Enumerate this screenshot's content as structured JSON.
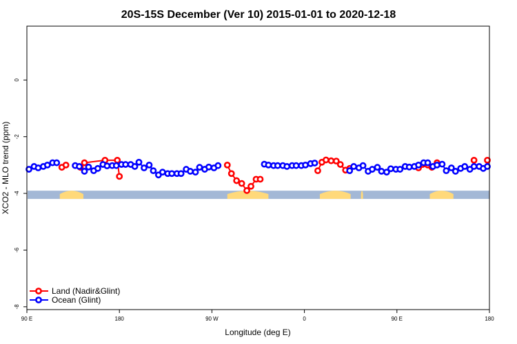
{
  "chart_data": {
    "type": "line",
    "title": "20S-15S December (Ver 10)   2015-01-01 to 2020-12-18",
    "xlabel": "Longitude (deg E)",
    "ylabel": "XCO2 - MLO trend (ppm)",
    "xlim": [
      90,
      540
    ],
    "ylim": [
      -8.1,
      1.9
    ],
    "x_ticks": [
      {
        "value": 90,
        "label": "90 E"
      },
      {
        "value": 180,
        "label": "180"
      },
      {
        "value": 270,
        "label": "90 W"
      },
      {
        "value": 360,
        "label": "0"
      },
      {
        "value": 450,
        "label": "90 E"
      },
      {
        "value": 540,
        "label": "180"
      }
    ],
    "y_ticks": [
      {
        "value": 0,
        "label": "0"
      },
      {
        "value": -2,
        "label": "-2"
      },
      {
        "value": -4,
        "label": "-4"
      },
      {
        "value": -6,
        "label": "-6"
      },
      {
        "value": -8,
        "label": "-8"
      }
    ],
    "series": [
      {
        "name": "Land (Nadir&Glint)",
        "color": "#ff0000",
        "segments": [
          [
            [
              124,
              -3.08
            ],
            [
              128,
              -3.0
            ]
          ],
          [
            [
              142,
              -3.08
            ],
            [
              146,
              -2.92
            ],
            [
              166,
              -2.83
            ],
            [
              178,
              -2.83
            ],
            [
              180,
              -3.4
            ]
          ],
          [
            [
              285,
              -3.0
            ],
            [
              289,
              -3.3
            ],
            [
              294,
              -3.55
            ],
            [
              299,
              -3.65
            ],
            [
              304,
              -3.9
            ],
            [
              308,
              -3.75
            ],
            [
              313,
              -3.5
            ],
            [
              317,
              -3.5
            ]
          ],
          [
            [
              373,
              -3.2
            ],
            [
              377,
              -2.9
            ],
            [
              381,
              -2.82
            ],
            [
              386,
              -2.85
            ],
            [
              391,
              -2.86
            ],
            [
              395,
              -2.98
            ],
            [
              400,
              -3.18
            ],
            [
              404,
              -3.12
            ]
          ],
          [
            [
              471,
              -3.1
            ],
            [
              475,
              -2.98
            ],
            [
              480,
              -3.0
            ],
            [
              484,
              -3.08
            ],
            [
              489,
              -2.92
            ]
          ],
          [
            [
              525,
              -2.83
            ]
          ],
          [
            [
              538,
              -2.83
            ]
          ]
        ]
      },
      {
        "name": "Ocean (Glint)",
        "color": "#0000ff",
        "segments": [
          [
            [
              92,
              -3.15
            ],
            [
              97,
              -3.05
            ],
            [
              101,
              -3.1
            ],
            [
              106,
              -3.05
            ],
            [
              110,
              -3.0
            ],
            [
              115,
              -2.92
            ],
            [
              119,
              -2.92
            ]
          ],
          [
            [
              137,
              -3.02
            ],
            [
              141,
              -3.05
            ],
            [
              146,
              -3.22
            ],
            [
              150,
              -3.07
            ],
            [
              155,
              -3.2
            ],
            [
              159,
              -3.12
            ],
            [
              164,
              -2.98
            ],
            [
              168,
              -3.03
            ],
            [
              173,
              -3.02
            ],
            [
              177,
              -3.02
            ],
            [
              182,
              -2.98
            ],
            [
              186,
              -2.98
            ],
            [
              191,
              -2.98
            ],
            [
              195,
              -3.05
            ],
            [
              199,
              -2.9
            ],
            [
              204,
              -3.1
            ],
            [
              209,
              -3.0
            ],
            [
              213,
              -3.2
            ],
            [
              218,
              -3.35
            ],
            [
              222,
              -3.25
            ],
            [
              227,
              -3.3
            ],
            [
              231,
              -3.3
            ],
            [
              236,
              -3.3
            ],
            [
              240,
              -3.3
            ],
            [
              245,
              -3.15
            ],
            [
              249,
              -3.22
            ],
            [
              254,
              -3.25
            ],
            [
              258,
              -3.08
            ],
            [
              263,
              -3.15
            ],
            [
              267,
              -3.07
            ],
            [
              272,
              -3.1
            ],
            [
              276,
              -3.02
            ]
          ],
          [
            [
              321,
              -2.97
            ],
            [
              325,
              -3.0
            ],
            [
              330,
              -3.02
            ],
            [
              334,
              -3.02
            ],
            [
              339,
              -3.02
            ],
            [
              343,
              -3.05
            ],
            [
              348,
              -3.02
            ],
            [
              352,
              -3.02
            ],
            [
              357,
              -3.02
            ],
            [
              361,
              -3.0
            ],
            [
              366,
              -2.95
            ],
            [
              370,
              -2.93
            ]
          ],
          [
            [
              404,
              -3.2
            ],
            [
              408,
              -3.05
            ],
            [
              413,
              -3.1
            ],
            [
              417,
              -3.02
            ],
            [
              422,
              -3.22
            ],
            [
              426,
              -3.15
            ],
            [
              431,
              -3.08
            ],
            [
              435,
              -3.22
            ],
            [
              440,
              -3.25
            ],
            [
              444,
              -3.13
            ],
            [
              449,
              -3.15
            ],
            [
              453,
              -3.15
            ],
            [
              458,
              -3.05
            ],
            [
              462,
              -3.07
            ],
            [
              467,
              -3.05
            ],
            [
              471,
              -3.0
            ],
            [
              476,
              -2.92
            ],
            [
              480,
              -2.92
            ]
          ],
          [
            [
              485,
              -3.05
            ],
            [
              489,
              -3.0
            ],
            [
              494,
              -2.97
            ],
            [
              498,
              -3.2
            ],
            [
              503,
              -3.1
            ],
            [
              507,
              -3.22
            ],
            [
              512,
              -3.12
            ],
            [
              516,
              -3.05
            ],
            [
              521,
              -3.15
            ],
            [
              525,
              -3.05
            ],
            [
              530,
              -3.05
            ],
            [
              534,
              -3.12
            ],
            [
              538,
              -3.05
            ]
          ]
        ]
      }
    ],
    "surface_band": {
      "y": -4.05,
      "ocean_color": "#a3b8d6",
      "land_color": "#ffd97a",
      "land_ranges": [
        [
          122,
          145
        ],
        [
          285,
          325
        ],
        [
          375,
          405
        ],
        [
          415,
          417
        ],
        [
          482,
          505
        ]
      ]
    },
    "legend": {
      "position": "bottom-left",
      "entries": [
        "Land (Nadir&Glint)",
        "Ocean (Glint)"
      ]
    }
  }
}
